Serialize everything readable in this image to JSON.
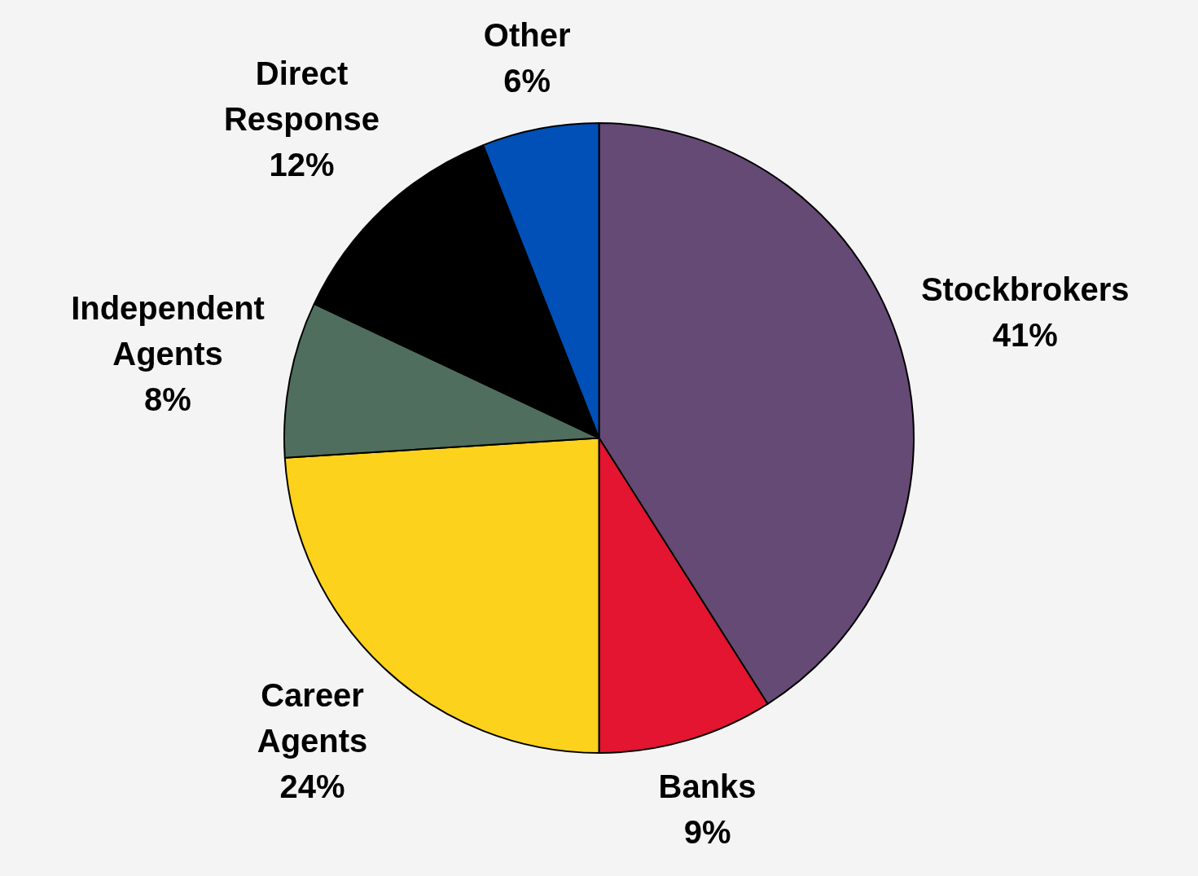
{
  "chart_data": {
    "type": "pie",
    "categories": [
      "Stockbrokers",
      "Banks",
      "Career Agents",
      "Independent Agents",
      "Direct Response",
      "Other"
    ],
    "values": [
      41,
      9,
      24,
      8,
      12,
      6
    ],
    "value_labels": [
      "41%",
      "9%",
      "24%",
      "8%",
      "12%",
      "6%"
    ],
    "colors": [
      "#644a74",
      "#e31530",
      "#fcd21c",
      "#4f6e5e",
      "#000000",
      "#0050b8"
    ]
  }
}
